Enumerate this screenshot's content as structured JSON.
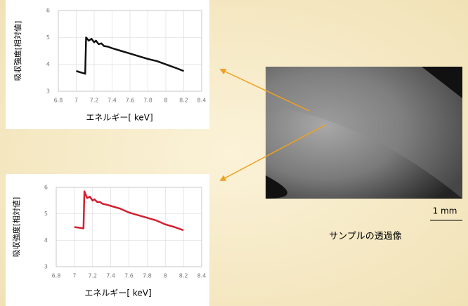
{
  "chart_data": [
    {
      "type": "line",
      "ylabel": "吸収強度[相対値]",
      "xlabel": "エネルギー[ keV]",
      "x": [
        7.0,
        7.1,
        7.11,
        7.14,
        7.17,
        7.2,
        7.22,
        7.25,
        7.28,
        7.31,
        7.35,
        7.4,
        7.5,
        7.6,
        7.7,
        7.8,
        7.9,
        8.0,
        8.1,
        8.2
      ],
      "series": [
        {
          "color": "#111111",
          "values": [
            3.75,
            3.65,
            5.0,
            4.88,
            4.95,
            4.82,
            4.88,
            4.75,
            4.78,
            4.68,
            4.66,
            4.6,
            4.5,
            4.4,
            4.3,
            4.2,
            4.12,
            4.0,
            3.88,
            3.75
          ]
        }
      ],
      "xlim": [
        6.8,
        8.4
      ],
      "xticks": [
        6.8,
        7,
        7.2,
        7.4,
        7.6,
        7.8,
        8,
        8.2,
        8.4
      ],
      "ylim": [
        3,
        6
      ],
      "yticks": [
        3,
        4,
        5,
        6
      ],
      "grid": true
    },
    {
      "type": "line",
      "ylabel": "吸収強度[相対値]",
      "xlabel": "エネルギー[ keV]",
      "x": [
        7.0,
        7.1,
        7.11,
        7.14,
        7.17,
        7.2,
        7.22,
        7.25,
        7.28,
        7.31,
        7.35,
        7.4,
        7.5,
        7.6,
        7.7,
        7.8,
        7.9,
        8.0,
        8.1,
        8.2
      ],
      "series": [
        {
          "color": "#d42030",
          "values": [
            4.5,
            4.45,
            5.85,
            5.6,
            5.65,
            5.5,
            5.55,
            5.45,
            5.45,
            5.38,
            5.35,
            5.3,
            5.2,
            5.05,
            4.95,
            4.85,
            4.75,
            4.6,
            4.5,
            4.38
          ]
        }
      ],
      "xlim": [
        6.8,
        8.4
      ],
      "xticks": [
        6.8,
        7,
        7.2,
        7.4,
        7.6,
        7.8,
        8,
        8.2,
        8.4
      ],
      "ylim": [
        3,
        6
      ],
      "yticks": [
        3,
        4,
        5,
        6
      ],
      "grid": true
    }
  ],
  "image": {
    "scale_label": "1 mm",
    "caption": "サンプルの透過像"
  }
}
